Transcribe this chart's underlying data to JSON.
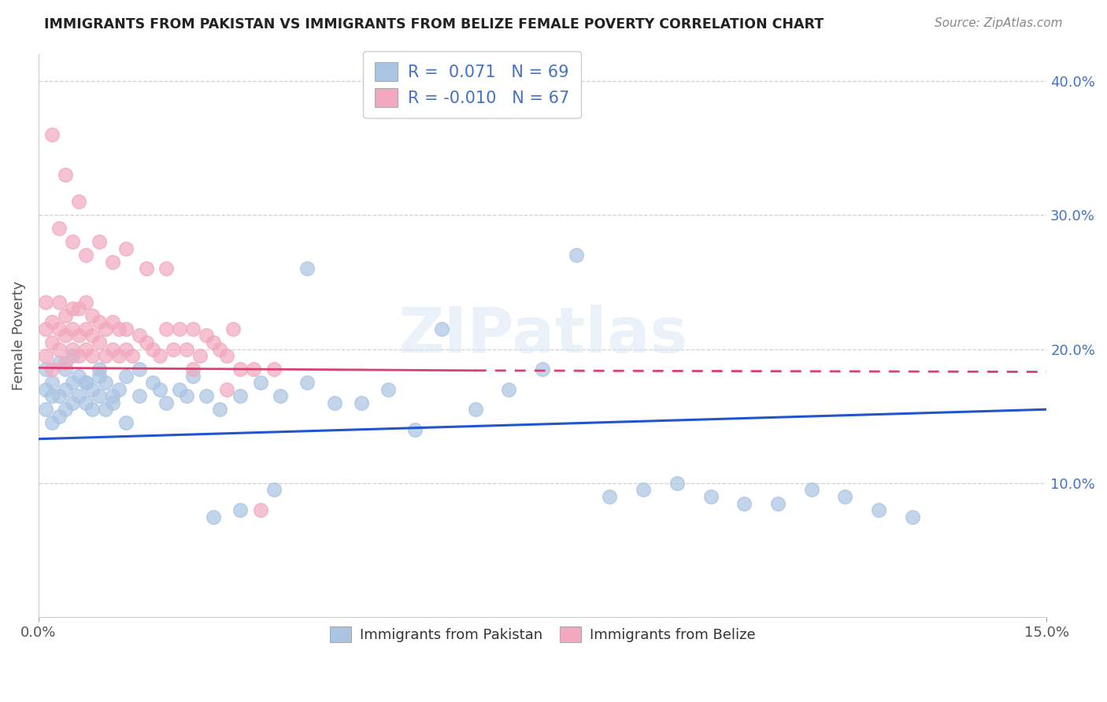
{
  "title": "IMMIGRANTS FROM PAKISTAN VS IMMIGRANTS FROM BELIZE FEMALE POVERTY CORRELATION CHART",
  "source": "Source: ZipAtlas.com",
  "ylabel": "Female Poverty",
  "xlim": [
    0.0,
    0.15
  ],
  "ylim": [
    0.0,
    0.42
  ],
  "pakistan_color": "#aac4e2",
  "belize_color": "#f2a8be",
  "pakistan_line_color": "#2255cc",
  "belize_line_color": "#d94070",
  "watermark": "ZIPatlas",
  "legend_r_pakistan": " 0.071",
  "legend_n_pakistan": "69",
  "legend_r_belize": "-0.010",
  "legend_n_belize": "67",
  "pakistan_scatter_x": [
    0.001,
    0.001,
    0.001,
    0.002,
    0.002,
    0.002,
    0.003,
    0.003,
    0.003,
    0.004,
    0.004,
    0.004,
    0.005,
    0.005,
    0.005,
    0.006,
    0.006,
    0.007,
    0.007,
    0.008,
    0.008,
    0.009,
    0.009,
    0.01,
    0.01,
    0.011,
    0.012,
    0.013,
    0.015,
    0.017,
    0.019,
    0.021,
    0.023,
    0.025,
    0.027,
    0.03,
    0.033,
    0.036,
    0.04,
    0.044,
    0.048,
    0.052,
    0.056,
    0.06,
    0.065,
    0.07,
    0.075,
    0.08,
    0.085,
    0.09,
    0.095,
    0.1,
    0.105,
    0.11,
    0.115,
    0.12,
    0.125,
    0.13,
    0.007,
    0.009,
    0.011,
    0.013,
    0.015,
    0.018,
    0.022,
    0.026,
    0.03,
    0.035,
    0.04
  ],
  "pakistan_scatter_y": [
    0.155,
    0.17,
    0.185,
    0.145,
    0.165,
    0.175,
    0.15,
    0.165,
    0.19,
    0.155,
    0.17,
    0.185,
    0.16,
    0.175,
    0.195,
    0.165,
    0.18,
    0.16,
    0.175,
    0.155,
    0.17,
    0.165,
    0.18,
    0.155,
    0.175,
    0.165,
    0.17,
    0.18,
    0.165,
    0.175,
    0.16,
    0.17,
    0.18,
    0.165,
    0.155,
    0.165,
    0.175,
    0.165,
    0.175,
    0.16,
    0.16,
    0.17,
    0.14,
    0.215,
    0.155,
    0.17,
    0.185,
    0.27,
    0.09,
    0.095,
    0.1,
    0.09,
    0.085,
    0.085,
    0.095,
    0.09,
    0.08,
    0.075,
    0.175,
    0.185,
    0.16,
    0.145,
    0.185,
    0.17,
    0.165,
    0.075,
    0.08,
    0.095,
    0.26
  ],
  "belize_scatter_x": [
    0.001,
    0.001,
    0.001,
    0.002,
    0.002,
    0.002,
    0.003,
    0.003,
    0.003,
    0.004,
    0.004,
    0.004,
    0.005,
    0.005,
    0.005,
    0.006,
    0.006,
    0.006,
    0.007,
    0.007,
    0.007,
    0.008,
    0.008,
    0.008,
    0.009,
    0.009,
    0.01,
    0.01,
    0.011,
    0.011,
    0.012,
    0.012,
    0.013,
    0.013,
    0.014,
    0.015,
    0.016,
    0.017,
    0.018,
    0.019,
    0.02,
    0.021,
    0.022,
    0.023,
    0.024,
    0.025,
    0.026,
    0.027,
    0.028,
    0.029,
    0.03,
    0.032,
    0.035,
    0.003,
    0.005,
    0.007,
    0.009,
    0.011,
    0.013,
    0.016,
    0.019,
    0.023,
    0.028,
    0.033,
    0.002,
    0.004,
    0.006
  ],
  "belize_scatter_y": [
    0.195,
    0.215,
    0.235,
    0.185,
    0.205,
    0.22,
    0.2,
    0.215,
    0.235,
    0.19,
    0.21,
    0.225,
    0.2,
    0.215,
    0.23,
    0.195,
    0.21,
    0.23,
    0.2,
    0.215,
    0.235,
    0.195,
    0.21,
    0.225,
    0.205,
    0.22,
    0.195,
    0.215,
    0.2,
    0.22,
    0.195,
    0.215,
    0.2,
    0.215,
    0.195,
    0.21,
    0.205,
    0.2,
    0.195,
    0.215,
    0.2,
    0.215,
    0.2,
    0.215,
    0.195,
    0.21,
    0.205,
    0.2,
    0.195,
    0.215,
    0.185,
    0.185,
    0.185,
    0.29,
    0.28,
    0.27,
    0.28,
    0.265,
    0.275,
    0.26,
    0.26,
    0.185,
    0.17,
    0.08,
    0.36,
    0.33,
    0.31
  ]
}
